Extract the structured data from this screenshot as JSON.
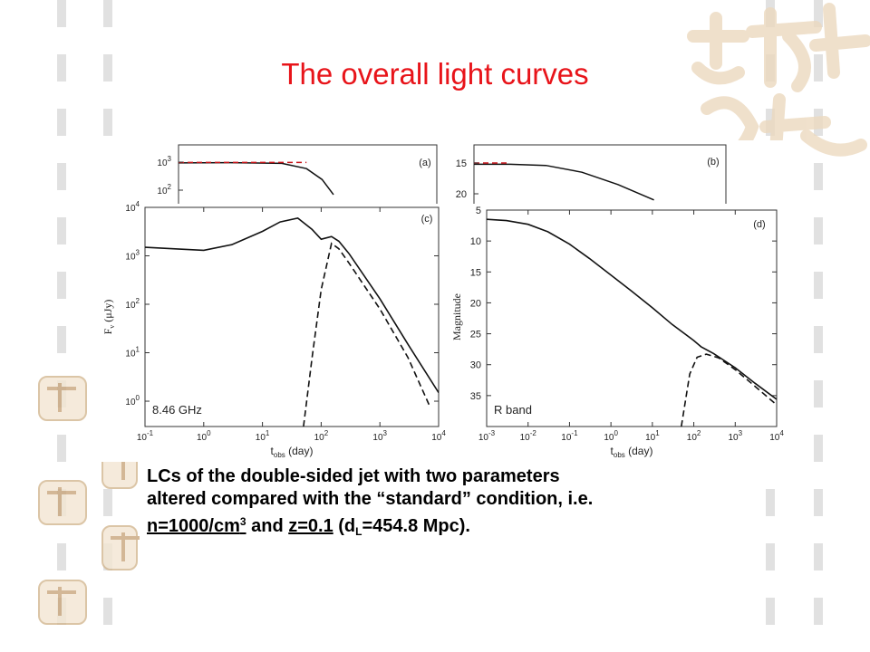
{
  "slide": {
    "title": "The overall light curves",
    "caption": {
      "line1": "LCs of the double-sided jet with two parameters",
      "line2": "altered compared with the “standard” condition, i.e.",
      "n_value": "n=1000/cm",
      "n_exp": "3",
      "and": " and ",
      "z_value": "z=0.1",
      "dl_open": " (d",
      "dl_sub": "L",
      "dl_rest": "=454.8 Mpc)."
    }
  },
  "chart_data": [
    {
      "type": "line",
      "panel": "(a)",
      "y_scale": "log",
      "yticks": [
        "10",
        "10"
      ],
      "ytick_exp": [
        "3",
        "2"
      ],
      "series": [
        {
          "style": "solid",
          "x": [
            0.1,
            1,
            10,
            30,
            60,
            100
          ],
          "y": [
            1200,
            1230,
            1150,
            700,
            250,
            60
          ]
        },
        {
          "style": "dashed",
          "color": "#c8141a",
          "x": [
            0.1,
            30
          ],
          "y": [
            1250,
            1250
          ]
        }
      ]
    },
    {
      "type": "line",
      "panel": "(b)",
      "yticks": [
        "15",
        "20"
      ],
      "series": [
        {
          "style": "solid",
          "x": [
            0.001,
            0.01,
            0.1,
            1,
            10,
            100
          ],
          "y": [
            15.2,
            15.2,
            15.4,
            16.5,
            18.5,
            21
          ]
        },
        {
          "style": "dashed",
          "color": "#c8141a",
          "x": [
            0.001,
            0.01
          ],
          "y": [
            15.0,
            15.0
          ]
        }
      ]
    },
    {
      "type": "line",
      "panel": "(c)",
      "label": "8.46 GHz",
      "xlabel": "t",
      "xlabel_sub": "obs",
      "xlabel_unit": " (day)",
      "ylabel": "F",
      "ylabel_sub": "v",
      "ylabel_unit": " (μJy)",
      "x_scale": "log",
      "y_scale": "log",
      "xlim": [
        0.1,
        10000
      ],
      "ylim": [
        0.3,
        10000
      ],
      "xticks": [
        "10",
        "10",
        "10",
        "10",
        "10",
        "10"
      ],
      "xtick_exp": [
        "-1",
        "0",
        "1",
        "2",
        "3",
        "4"
      ],
      "yticks": [
        "10",
        "10",
        "10",
        "10",
        "10"
      ],
      "ytick_exp": [
        "0",
        "1",
        "2",
        "3",
        "4"
      ],
      "series": [
        {
          "style": "solid",
          "x": [
            0.1,
            0.3,
            1,
            3,
            10,
            20,
            40,
            70,
            100,
            150,
            200,
            300,
            1000,
            3000,
            10000
          ],
          "y": [
            1500,
            1400,
            1300,
            1700,
            3200,
            5000,
            6000,
            3500,
            2200,
            2500,
            2000,
            1100,
            130,
            15,
            1.5
          ]
        },
        {
          "style": "dashed",
          "x": [
            50,
            70,
            100,
            150,
            200,
            300,
            1000,
            3000,
            7000
          ],
          "y": [
            0.3,
            8,
            200,
            1800,
            1400,
            700,
            80,
            8,
            0.8
          ]
        }
      ]
    },
    {
      "type": "line",
      "panel": "(d)",
      "label": "R band",
      "xlabel": "t",
      "xlabel_sub": "obs",
      "xlabel_unit": " (day)",
      "ylabel": "Magnitude",
      "x_scale": "log",
      "xlim": [
        0.001,
        10000
      ],
      "ylim": [
        40,
        5
      ],
      "xticks": [
        "10",
        "10",
        "10",
        "10",
        "10",
        "10",
        "10",
        "10"
      ],
      "xtick_exp": [
        "-3",
        "-2",
        "-1",
        "0",
        "1",
        "2",
        "3",
        "4"
      ],
      "yticks": [
        "5",
        "10",
        "15",
        "20",
        "25",
        "30",
        "35"
      ],
      "series": [
        {
          "style": "solid",
          "x": [
            0.001,
            0.003,
            0.01,
            0.03,
            0.1,
            0.3,
            1,
            3,
            10,
            30,
            100,
            150,
            300,
            1000,
            3000,
            10000
          ],
          "y": [
            6.5,
            6.7,
            7.3,
            8.5,
            10.5,
            12.8,
            15.5,
            18,
            20.8,
            23.5,
            26.1,
            27.1,
            28.2,
            30.5,
            33,
            35.6
          ]
        },
        {
          "style": "dashed",
          "x": [
            50,
            80,
            120,
            200,
            400,
            1000,
            3000,
            10000
          ],
          "y": [
            40,
            31.5,
            28.8,
            28.3,
            28.9,
            30.8,
            33.5,
            36.5
          ]
        }
      ]
    }
  ]
}
